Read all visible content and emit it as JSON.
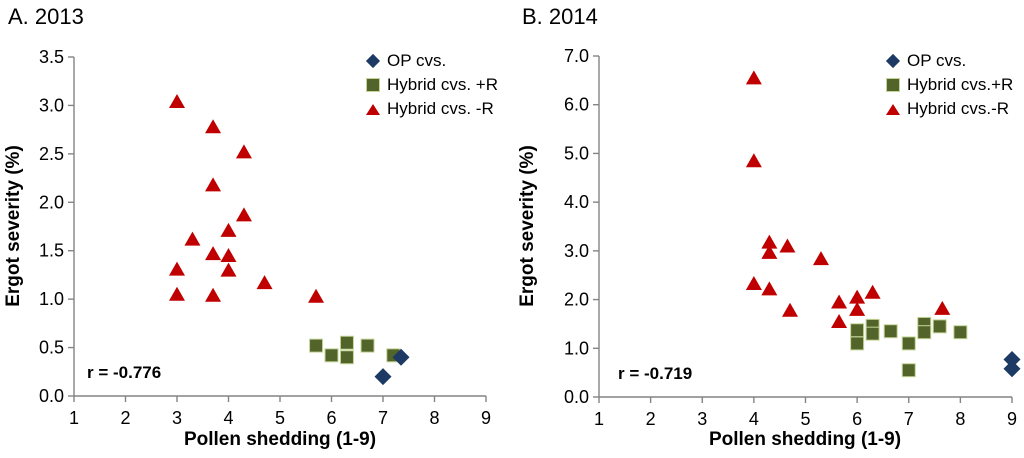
{
  "chart_data": [
    {
      "panel": "A",
      "type": "scatter",
      "title": "A. 2013",
      "xlabel": "Pollen shedding (1-9)",
      "ylabel": "Ergot severity (%)",
      "annotation": "r = -0.776",
      "xlim": [
        1,
        9
      ],
      "ylim": [
        0,
        3.5
      ],
      "xticks": [
        1,
        2,
        3,
        4,
        5,
        6,
        7,
        8,
        9
      ],
      "yticks": [
        0.0,
        0.5,
        1.0,
        1.5,
        2.0,
        2.5,
        3.0,
        3.5
      ],
      "grid": false,
      "legend_position": "top-right",
      "axis_color": "#848484",
      "series": [
        {
          "name": "OP cvs.",
          "marker": "diamond",
          "color": "#1C3A63",
          "points": [
            [
              7.0,
              0.2
            ],
            [
              7.35,
              0.4
            ]
          ]
        },
        {
          "name": "Hybrid cvs. +R",
          "marker": "square",
          "color": "#526429",
          "points": [
            [
              5.7,
              0.52
            ],
            [
              6.0,
              0.42
            ],
            [
              6.3,
              0.55
            ],
            [
              6.3,
              0.4
            ],
            [
              6.7,
              0.52
            ],
            [
              7.2,
              0.42
            ]
          ]
        },
        {
          "name": "Hybrid cvs. -R",
          "marker": "triangle",
          "color": "#C00000",
          "points": [
            [
              3.0,
              3.04
            ],
            [
              3.7,
              2.78
            ],
            [
              4.3,
              2.52
            ],
            [
              3.7,
              2.18
            ],
            [
              4.3,
              1.87
            ],
            [
              4.0,
              1.71
            ],
            [
              3.3,
              1.62
            ],
            [
              3.7,
              1.47
            ],
            [
              4.0,
              1.45
            ],
            [
              3.0,
              1.31
            ],
            [
              4.0,
              1.3
            ],
            [
              4.7,
              1.17
            ],
            [
              3.0,
              1.05
            ],
            [
              3.7,
              1.04
            ],
            [
              5.7,
              1.03
            ]
          ]
        }
      ]
    },
    {
      "panel": "B",
      "type": "scatter",
      "title": "B. 2014",
      "xlabel": "Pollen shedding (1-9)",
      "ylabel": "Ergot severity (%)",
      "annotation": "r = -0.719",
      "xlim": [
        1,
        9
      ],
      "ylim": [
        0,
        7.0
      ],
      "xticks": [
        1,
        2,
        3,
        4,
        5,
        6,
        7,
        8,
        9
      ],
      "yticks": [
        0.0,
        1.0,
        2.0,
        3.0,
        4.0,
        5.0,
        6.0,
        7.0
      ],
      "grid": false,
      "legend_position": "top-right",
      "axis_color": "#848484",
      "series": [
        {
          "name": "OP cvs.",
          "marker": "diamond",
          "color": "#1C3A63",
          "points": [
            [
              9.0,
              0.77
            ],
            [
              9.0,
              0.58
            ]
          ]
        },
        {
          "name": "Hybrid cvs.+R",
          "marker": "square",
          "color": "#526429",
          "points": [
            [
              6.0,
              1.37
            ],
            [
              6.0,
              1.1
            ],
            [
              6.3,
              1.46
            ],
            [
              6.3,
              1.3
            ],
            [
              6.65,
              1.35
            ],
            [
              7.0,
              1.1
            ],
            [
              7.3,
              1.5
            ],
            [
              7.3,
              1.33
            ],
            [
              7.6,
              1.45
            ],
            [
              8.0,
              1.33
            ],
            [
              7.0,
              0.55
            ]
          ]
        },
        {
          "name": "Hybrid cvs.-R",
          "marker": "triangle",
          "color": "#C00000",
          "points": [
            [
              4.0,
              6.55
            ],
            [
              4.0,
              4.85
            ],
            [
              4.3,
              3.18
            ],
            [
              4.3,
              2.97
            ],
            [
              4.65,
              3.1
            ],
            [
              5.3,
              2.84
            ],
            [
              4.0,
              2.33
            ],
            [
              4.3,
              2.22
            ],
            [
              4.7,
              1.78
            ],
            [
              5.65,
              1.95
            ],
            [
              5.65,
              1.55
            ],
            [
              6.0,
              2.05
            ],
            [
              6.0,
              1.8
            ],
            [
              6.3,
              2.15
            ],
            [
              7.65,
              1.82
            ]
          ]
        }
      ]
    }
  ]
}
